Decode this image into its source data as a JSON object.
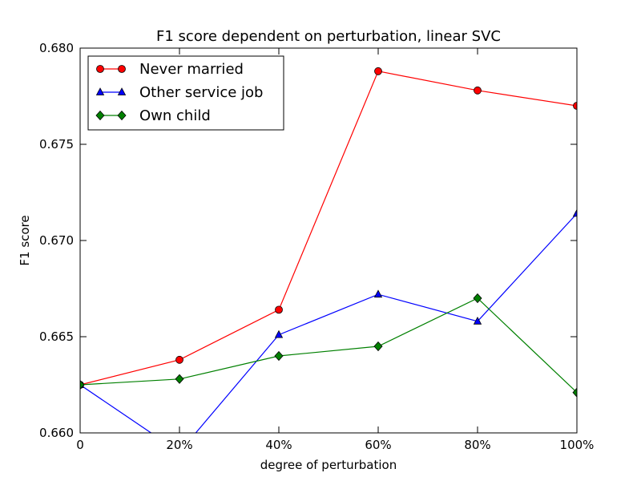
{
  "chart_data": {
    "type": "line",
    "title": "F1 score dependent on perturbation, linear SVC",
    "xlabel": "degree of perturbation",
    "ylabel": "F1 score",
    "x": [
      0,
      20,
      40,
      60,
      80,
      100
    ],
    "x_tick_labels": [
      "0",
      "20%",
      "40%",
      "60%",
      "80%",
      "100%"
    ],
    "xlim": [
      0,
      100
    ],
    "ylim": [
      0.66,
      0.68
    ],
    "y_ticks": [
      0.66,
      0.665,
      0.67,
      0.675,
      0.68
    ],
    "y_tick_labels": [
      "0.660",
      "0.665",
      "0.670",
      "0.675",
      "0.680"
    ],
    "grid": false,
    "legend_position": "top-left",
    "series": [
      {
        "name": "Never married",
        "color": "#ff0000",
        "marker": "circle",
        "values": [
          0.6625,
          0.6638,
          0.6664,
          0.6788,
          0.6778,
          0.677
        ]
      },
      {
        "name": "Other service job",
        "color": "#0000ff",
        "marker": "triangle",
        "values": [
          0.6625,
          0.659,
          0.6651,
          0.6672,
          0.6658,
          0.6714
        ]
      },
      {
        "name": "Own child",
        "color": "#008000",
        "marker": "diamond",
        "values": [
          0.6625,
          0.6628,
          0.664,
          0.6645,
          0.667,
          0.6621
        ]
      }
    ]
  }
}
